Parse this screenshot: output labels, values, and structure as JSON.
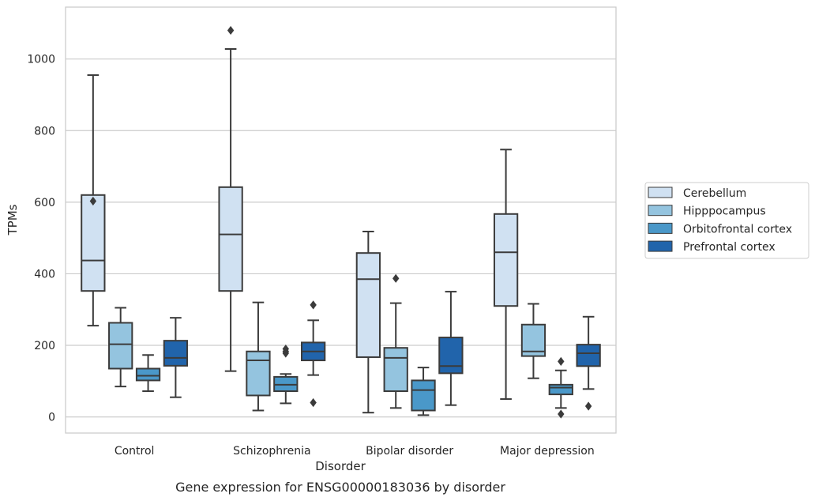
{
  "caption": "Gene expression for ENSG00000183036 by disorder",
  "chart_data": {
    "type": "box",
    "xlabel": "Disorder",
    "ylabel": "TPMs",
    "ylim": [
      -45,
      1145
    ],
    "yticks": [
      0,
      200,
      400,
      600,
      800,
      1000
    ],
    "grid": "horizontal",
    "legend_position": "right",
    "categories": [
      "Control",
      "Schizophrenia",
      "Bipolar disorder",
      "Major depression"
    ],
    "series": [
      {
        "name": "Cerebellum",
        "color": "#d0e1f2",
        "boxes": [
          {
            "whislo": 255,
            "q1": 352,
            "med": 437,
            "q3": 620,
            "whishi": 955,
            "fliers": [
              603
            ]
          },
          {
            "whislo": 128,
            "q1": 352,
            "med": 510,
            "q3": 642,
            "whishi": 1028,
            "fliers": [
              1080
            ]
          },
          {
            "whislo": 12,
            "q1": 167,
            "med": 385,
            "q3": 458,
            "whishi": 518,
            "fliers": []
          },
          {
            "whislo": 50,
            "q1": 310,
            "med": 460,
            "q3": 567,
            "whishi": 747,
            "fliers": []
          }
        ]
      },
      {
        "name": "Hipppocampus",
        "color": "#94c4df",
        "boxes": [
          {
            "whislo": 85,
            "q1": 135,
            "med": 203,
            "q3": 263,
            "whishi": 305,
            "fliers": []
          },
          {
            "whislo": 18,
            "q1": 60,
            "med": 158,
            "q3": 183,
            "whishi": 320,
            "fliers": []
          },
          {
            "whislo": 25,
            "q1": 72,
            "med": 165,
            "q3": 193,
            "whishi": 318,
            "fliers": [
              387
            ]
          },
          {
            "whislo": 108,
            "q1": 170,
            "med": 183,
            "q3": 258,
            "whishi": 316,
            "fliers": []
          }
        ]
      },
      {
        "name": "Orbitofrontal cortex",
        "color": "#4a98c9",
        "boxes": [
          {
            "whislo": 72,
            "q1": 102,
            "med": 115,
            "q3": 135,
            "whishi": 173,
            "fliers": []
          },
          {
            "whislo": 38,
            "q1": 72,
            "med": 90,
            "q3": 112,
            "whishi": 120,
            "fliers": [
              178,
              183,
              190
            ]
          },
          {
            "whislo": 5,
            "q1": 18,
            "med": 75,
            "q3": 102,
            "whishi": 138,
            "fliers": []
          },
          {
            "whislo": 25,
            "q1": 63,
            "med": 82,
            "q3": 90,
            "whishi": 130,
            "fliers": [
              155,
              8
            ]
          }
        ]
      },
      {
        "name": "Prefrontal cortex",
        "color": "#2164ab",
        "boxes": [
          {
            "whislo": 55,
            "q1": 143,
            "med": 165,
            "q3": 213,
            "whishi": 277,
            "fliers": []
          },
          {
            "whislo": 117,
            "q1": 158,
            "med": 183,
            "q3": 208,
            "whishi": 270,
            "fliers": [
              313,
              40
            ]
          },
          {
            "whislo": 33,
            "q1": 122,
            "med": 142,
            "q3": 222,
            "whishi": 350,
            "fliers": []
          },
          {
            "whislo": 78,
            "q1": 142,
            "med": 178,
            "q3": 202,
            "whishi": 280,
            "fliers": [
              30
            ]
          }
        ]
      }
    ]
  }
}
